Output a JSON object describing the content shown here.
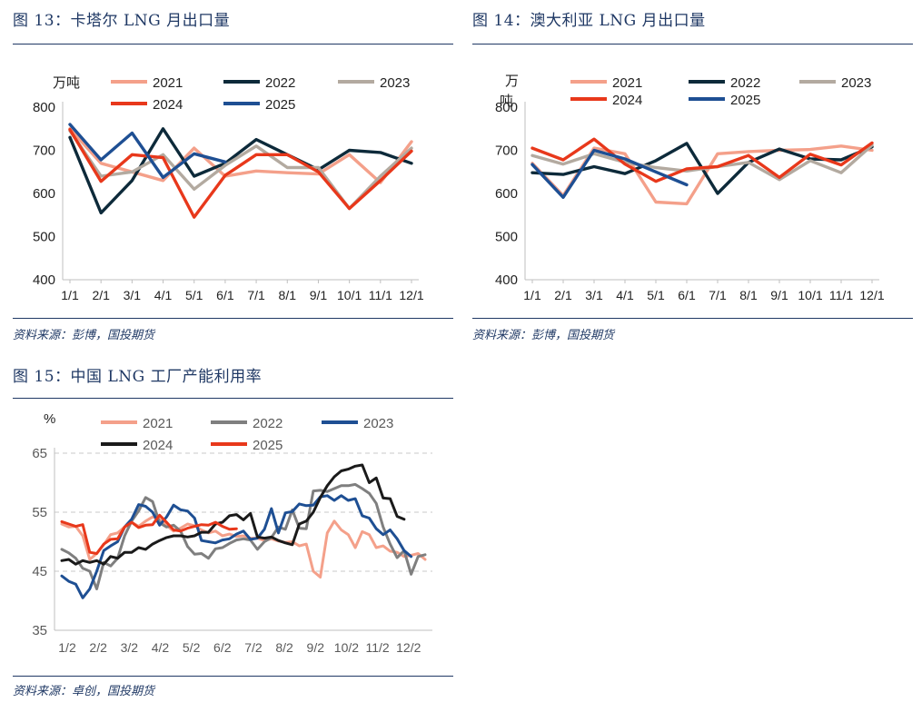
{
  "figures": [
    {
      "title": "图 13：卡塔尔 LNG 月出口量",
      "source": "资料来源：彭博，国投期货"
    },
    {
      "title": "图 14：澳大利亚 LNG 月出口量",
      "source": "资料来源：彭博，国投期货"
    },
    {
      "title": "图 15：中国 LNG 工厂产能利用率",
      "source": "资料来源：卓创，国投期货"
    }
  ],
  "chart_data": [
    {
      "type": "line",
      "title": "图 13：卡塔尔 LNG 月出口量",
      "ylabel": "万吨",
      "xlabel": "",
      "ylim": [
        400,
        800
      ],
      "yticks": [
        400,
        500,
        600,
        700,
        800
      ],
      "grid": false,
      "legend": "top",
      "categories": [
        "1/1",
        "2/1",
        "3/1",
        "4/1",
        "5/1",
        "6/1",
        "7/1",
        "8/1",
        "9/1",
        "10/1",
        "11/1",
        "12/1"
      ],
      "series": [
        {
          "name": "2021",
          "color": "#f4a08a",
          "values": [
            750,
            670,
            650,
            630,
            705,
            640,
            652,
            648,
            645,
            690,
            625,
            720
          ]
        },
        {
          "name": "2022",
          "color": "#0d2a3a",
          "values": [
            730,
            555,
            630,
            750,
            640,
            670,
            725,
            690,
            655,
            700,
            695,
            670
          ]
        },
        {
          "name": "2023",
          "color": "#b3aaa0",
          "values": [
            745,
            640,
            650,
            690,
            610,
            665,
            710,
            660,
            660,
            565,
            640,
            705
          ]
        },
        {
          "name": "2024",
          "color": "#e8381b",
          "values": [
            748,
            628,
            690,
            683,
            545,
            642,
            690,
            690,
            650,
            565,
            630,
            698
          ]
        },
        {
          "name": "2025",
          "color": "#1e4f93",
          "values": [
            760,
            678,
            740,
            637,
            692,
            673,
            null,
            null,
            null,
            null,
            null,
            null
          ]
        }
      ]
    },
    {
      "type": "line",
      "title": "图 14：澳大利亚 LNG 月出口量",
      "ylabel": "万吨",
      "xlabel": "",
      "ylim": [
        400,
        800
      ],
      "yticks": [
        400,
        500,
        600,
        700,
        800
      ],
      "grid": false,
      "legend": "top",
      "categories": [
        "1/1",
        "2/1",
        "3/1",
        "4/1",
        "5/1",
        "6/1",
        "7/1",
        "8/1",
        "9/1",
        "10/1",
        "11/1",
        "12/1"
      ],
      "series": [
        {
          "name": "2021",
          "color": "#f4a08a",
          "values": [
            670,
            595,
            705,
            692,
            580,
            576,
            692,
            697,
            700,
            702,
            710,
            700
          ]
        },
        {
          "name": "2022",
          "color": "#0d2a3a",
          "values": [
            648,
            644,
            662,
            646,
            676,
            716,
            600,
            672,
            703,
            680,
            678,
            708
          ]
        },
        {
          "name": "2023",
          "color": "#b3aaa0",
          "values": [
            688,
            668,
            692,
            672,
            660,
            652,
            662,
            672,
            632,
            676,
            648,
            712
          ]
        },
        {
          "name": "2024",
          "color": "#e8381b",
          "values": [
            705,
            678,
            726,
            668,
            628,
            657,
            662,
            688,
            637,
            691,
            666,
            717
          ]
        },
        {
          "name": "2025",
          "color": "#1e4f93",
          "values": [
            667,
            591,
            700,
            680,
            650,
            620,
            null,
            null,
            null,
            null,
            null,
            null
          ]
        }
      ]
    },
    {
      "type": "line",
      "title": "图 15：中国 LNG 工厂产能利用率",
      "ylabel": "%",
      "xlabel": "",
      "ylim": [
        35,
        65
      ],
      "yticks": [
        35,
        45,
        55,
        65
      ],
      "grid": true,
      "legend": "top",
      "x_tick_labels": [
        "1/2",
        "2/2",
        "3/2",
        "4/2",
        "5/2",
        "6/2",
        "7/2",
        "8/2",
        "9/2",
        "10/2",
        "11/2",
        "12/2"
      ],
      "x": [
        1,
        2,
        3,
        4,
        5,
        6,
        7,
        8,
        9,
        10,
        11,
        12,
        13,
        14,
        15,
        16,
        17,
        18,
        19,
        20,
        21,
        22,
        23,
        24,
        25,
        26,
        27,
        28,
        29,
        30,
        31,
        32,
        33,
        34,
        35,
        36,
        37,
        38,
        39,
        40,
        41,
        42,
        43,
        44,
        45,
        46,
        47,
        48,
        49,
        50,
        51,
        52,
        53
      ],
      "series": [
        {
          "name": "2021",
          "color": "#f4a08a",
          "values": [
            53,
            52.5,
            52.6,
            51,
            47,
            48,
            49.5,
            51.2,
            51.5,
            52.5,
            53.3,
            52.6,
            53.5,
            54.2,
            53.8,
            52.8,
            51.8,
            52.3,
            53,
            52.7,
            52,
            51.5,
            51.8,
            51,
            51.3,
            50.9,
            51,
            50.6,
            50.6,
            50.2,
            50.5,
            50.1,
            49.9,
            50,
            49.3,
            49.6,
            45,
            44,
            51.5,
            53.5,
            52,
            51.2,
            49,
            51.7,
            51.2,
            49,
            49.3,
            48.4,
            48.2,
            47.5,
            47.7,
            48,
            47
          ]
        },
        {
          "name": "2022",
          "color": "#7f7f7f",
          "values": [
            48.7,
            48.1,
            47.2,
            45.5,
            45,
            42,
            46.5,
            45.9,
            47.2,
            51,
            53.5,
            55.2,
            57.5,
            56.8,
            53.2,
            52.5,
            52.8,
            51.8,
            49.2,
            47.9,
            48,
            47.2,
            48.8,
            49,
            49.7,
            50.3,
            50.5,
            50.3,
            48.7,
            50,
            50.7,
            52.5,
            52.1,
            55.4,
            52.3,
            52.2,
            58.6,
            58.7,
            58.5,
            59,
            59.5,
            59.5,
            59.7,
            59,
            58.2,
            56.5,
            52.5,
            49.6,
            47.3,
            48.5,
            44.5,
            47.5,
            47.8
          ]
        },
        {
          "name": "2023",
          "color": "#1e4f93",
          "values": [
            44.2,
            43.3,
            42.8,
            40.5,
            42,
            45,
            48.5,
            49.3,
            50,
            52.5,
            53.8,
            56.3,
            56,
            55,
            52.8,
            54.2,
            56.2,
            55.4,
            55.2,
            54,
            50.2,
            50,
            49.8,
            50.3,
            50.5,
            51.3,
            51.8,
            50.4,
            50.6,
            52.1,
            55.6,
            51.5,
            54.9,
            55.1,
            56.4,
            56.1,
            56.2,
            57.6,
            57.8,
            57,
            57.8,
            57,
            57.3,
            54.4,
            54,
            52.2,
            51.2,
            52,
            50.5,
            48.5,
            47.5,
            null,
            null
          ]
        },
        {
          "name": "2024",
          "color": "#1a1a1a",
          "values": [
            46.8,
            47,
            46.2,
            46.8,
            46.5,
            46.8,
            46.2,
            47.5,
            47.2,
            48.2,
            48.2,
            49,
            48.7,
            49.6,
            50.2,
            50.7,
            51,
            51,
            50.8,
            51,
            51.6,
            51.6,
            53,
            53.3,
            54.4,
            54.6,
            53.7,
            54.8,
            50.8,
            50.6,
            50.8,
            50.2,
            49.8,
            49.5,
            53,
            53.5,
            55,
            57.5,
            59.5,
            61,
            62,
            62.3,
            62.8,
            63,
            60,
            60.8,
            57.4,
            57.3,
            54.3,
            53.8,
            null,
            null,
            null
          ]
        },
        {
          "name": "2025",
          "color": "#e8381b",
          "values": [
            53.4,
            53,
            52.6,
            52.9,
            48.2,
            48,
            49.6,
            50.4,
            50.5,
            52.5,
            53.3,
            52.4,
            52.8,
            52.9,
            54.5,
            53.3,
            52,
            51.8,
            52.3,
            52.6,
            52.9,
            52.8,
            53.3,
            52.6,
            52.1,
            52.2,
            null,
            null,
            null,
            null,
            null,
            null,
            null,
            null,
            null,
            null,
            null,
            null,
            null,
            null,
            null,
            null,
            null,
            null,
            null,
            null,
            null,
            null,
            null,
            null,
            null,
            null,
            null
          ]
        }
      ]
    }
  ]
}
